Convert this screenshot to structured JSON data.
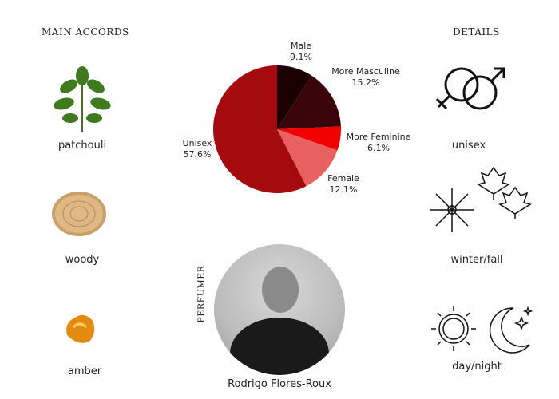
{
  "headings": {
    "main_accords": "MAIN ACCORDS",
    "details": "DETAILS",
    "perfumer": "PERFUMER"
  },
  "accords": [
    {
      "label": "patchouli",
      "icon": "patchouli-leaf-icon"
    },
    {
      "label": "woody",
      "icon": "wood-slice-icon"
    },
    {
      "label": "amber",
      "icon": "amber-stone-icon"
    }
  ],
  "details": [
    {
      "label": "unisex",
      "icon": "gender-symbols-icon"
    },
    {
      "label": "winter/fall",
      "icon": "snowflake-maple-leaf-icon"
    },
    {
      "label": "day/night",
      "icon": "sun-moon-icon"
    }
  ],
  "perfumer": {
    "name": "Rodrigo Flores-Roux"
  },
  "chart_data": {
    "type": "pie",
    "categories": [
      "Male",
      "More Masculine",
      "More Feminine",
      "Female",
      "Unisex"
    ],
    "values": [
      9.1,
      15.2,
      6.1,
      12.1,
      57.6
    ],
    "labels": [
      "9.1%",
      "15.2%",
      "6.1%",
      "12.1%",
      "57.6%"
    ],
    "colors": [
      "#1a0000",
      "#3a0508",
      "#f20000",
      "#e86060",
      "#a50b0e"
    ]
  }
}
